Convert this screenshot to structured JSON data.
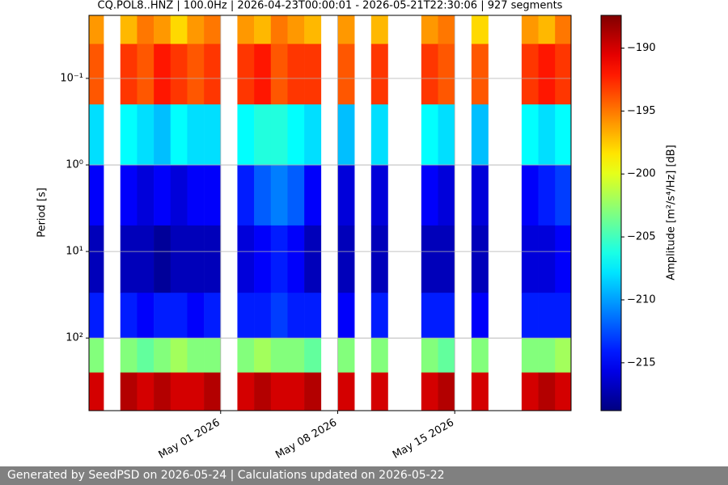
{
  "chart_data": {
    "type": "heatmap",
    "title": "CQ.POL8..HNZ | 100.0Hz | 2026-04-23T00:00:01 - 2026-05-21T22:30:06 | 927 segments",
    "y_label": "Period [s]",
    "colorbar_label": "Amplitude [m²/s⁴/Hz] [dB]",
    "x": [
      "2026-04-23",
      "2026-04-24",
      "2026-04-25",
      "2026-04-26",
      "2026-04-27",
      "2026-04-28",
      "2026-04-29",
      "2026-04-30",
      "2026-05-01",
      "2026-05-02",
      "2026-05-03",
      "2026-05-04",
      "2026-05-05",
      "2026-05-06",
      "2026-05-07",
      "2026-05-08",
      "2026-05-09",
      "2026-05-10",
      "2026-05-11",
      "2026-05-12",
      "2026-05-13",
      "2026-05-14",
      "2026-05-15",
      "2026-05-16",
      "2026-05-17",
      "2026-05-18",
      "2026-05-19",
      "2026-05-20",
      "2026-05-21"
    ],
    "xlim": [
      "2026-04-23T03:00",
      "2026-05-21T23:00"
    ],
    "xticks": [
      {
        "value": "2026-05-01",
        "label": "May 01 2026"
      },
      {
        "value": "2026-05-08",
        "label": "May 08 2026"
      },
      {
        "value": "2026-05-15",
        "label": "May 15 2026"
      }
    ],
    "period_bins": [
      0.0187,
      0.04,
      0.2,
      1,
      5,
      30,
      100,
      250,
      690
    ],
    "ylim": [
      0.0187,
      690
    ],
    "y_log": true,
    "y_inverted": true,
    "yticks": [
      {
        "value": 0.1,
        "label": "10⁻¹"
      },
      {
        "value": 1,
        "label": "10⁰"
      },
      {
        "value": 10,
        "label": "10¹"
      },
      {
        "value": 100,
        "label": "10²"
      }
    ],
    "grid": true,
    "colormap": "jet",
    "clim": [
      -218.8,
      -187.4
    ],
    "cticks": [
      {
        "value": -190,
        "label": "−190"
      },
      {
        "value": -195,
        "label": "−195"
      },
      {
        "value": -200,
        "label": "−200"
      },
      {
        "value": -205,
        "label": "−205"
      },
      {
        "value": -210,
        "label": "−210"
      },
      {
        "value": -215,
        "label": "−215"
      }
    ],
    "z": [
      [
        -196,
        null,
        -197,
        -195,
        -196,
        -198,
        -196,
        -195,
        null,
        -196,
        -197,
        -195,
        -196,
        -197,
        null,
        -196,
        null,
        -197,
        null,
        null,
        -196,
        -195,
        null,
        -198,
        null,
        null,
        -196,
        -197,
        -195
      ],
      [
        -194,
        null,
        -193,
        -194,
        -192,
        -193,
        -194,
        -193,
        null,
        -193,
        -192,
        -194,
        -193,
        -193,
        null,
        -194,
        null,
        -193,
        null,
        null,
        -193,
        -194,
        null,
        -194,
        null,
        null,
        -193,
        -192,
        -193
      ],
      [
        -208,
        null,
        -207,
        -208,
        -209,
        -207,
        -208,
        -208,
        null,
        -207,
        -206,
        -206,
        -207,
        -208,
        null,
        -209,
        null,
        -208,
        null,
        null,
        -207,
        -208,
        null,
        -209,
        null,
        null,
        -207,
        -208,
        -207
      ],
      [
        -215,
        null,
        -215,
        -216,
        -215,
        -216,
        -215,
        -215,
        null,
        -214,
        -212,
        -211,
        -212,
        -215,
        null,
        -216,
        null,
        -216,
        null,
        null,
        -215,
        -216,
        null,
        -216,
        null,
        null,
        -215,
        -214,
        -213
      ],
      [
        -217,
        null,
        -217,
        -217,
        -218,
        -217,
        -217,
        -217,
        null,
        -216,
        -215,
        -214,
        -215,
        -217,
        null,
        -217,
        null,
        -217,
        null,
        null,
        -217,
        -217,
        null,
        -217,
        null,
        null,
        -216,
        -216,
        -215
      ],
      [
        -214,
        null,
        -214,
        -215,
        -214,
        -214,
        -215,
        -214,
        null,
        -214,
        -214,
        -213,
        -214,
        -214,
        null,
        -215,
        null,
        -214,
        null,
        null,
        -214,
        -214,
        null,
        -215,
        null,
        null,
        -214,
        -214,
        -214
      ],
      [
        -203,
        null,
        -203,
        -204,
        -203,
        -202,
        -203,
        -203,
        null,
        -203,
        -202,
        -203,
        -203,
        -204,
        null,
        -203,
        null,
        -203,
        null,
        null,
        -203,
        -204,
        null,
        -203,
        null,
        null,
        -203,
        -203,
        -202
      ],
      [
        -190,
        null,
        -189,
        -190,
        -189,
        -190,
        -190,
        -189,
        null,
        -190,
        -189,
        -190,
        -190,
        -189,
        null,
        -190,
        null,
        -190,
        null,
        null,
        -190,
        -189,
        null,
        -190,
        null,
        null,
        -190,
        -189,
        -190
      ]
    ]
  },
  "footer": {
    "text": "Generated by SeedPSD on 2026-05-24 | Calculations updated on 2026-05-22"
  }
}
